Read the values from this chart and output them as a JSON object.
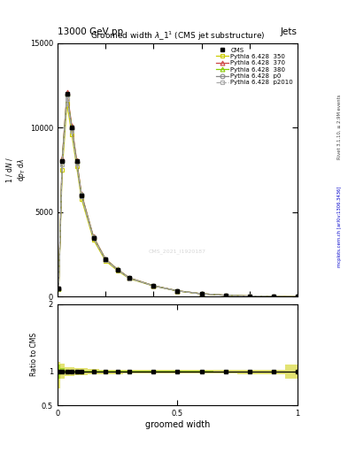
{
  "title": "13000 GeV pp",
  "title_right": "Jets",
  "plot_title": "Groomed width $\\lambda\\_1^1$ (CMS jet substructure)",
  "watermark": "CMS_2021_I1920187",
  "xlabel": "groomed width",
  "right_label_top": "Rivet 3.1.10, ≥ 2.9M events",
  "right_label_bottom": "mcplots.cern.ch [arXiv:1306.3436]",
  "x_data": [
    0.005,
    0.02,
    0.04,
    0.06,
    0.08,
    0.1,
    0.15,
    0.2,
    0.25,
    0.3,
    0.4,
    0.5,
    0.6,
    0.7,
    0.8,
    0.9,
    1.0
  ],
  "cms_y": [
    500,
    8000,
    12000,
    10000,
    8000,
    6000,
    3500,
    2200,
    1600,
    1100,
    650,
    350,
    180,
    90,
    45,
    15,
    5
  ],
  "p350_y": [
    420,
    7500,
    11400,
    9600,
    7700,
    5800,
    3380,
    2130,
    1550,
    1070,
    640,
    345,
    177,
    88,
    43,
    14,
    4
  ],
  "p370_y": [
    540,
    8200,
    12100,
    10100,
    8100,
    6100,
    3560,
    2240,
    1630,
    1120,
    660,
    355,
    182,
    92,
    46,
    16,
    5
  ],
  "p380_y": [
    510,
    8100,
    12000,
    10000,
    8000,
    6050,
    3530,
    2220,
    1620,
    1110,
    655,
    352,
    181,
    91,
    46,
    15,
    5
  ],
  "p0_y": [
    500,
    8050,
    11950,
    9950,
    7980,
    6020,
    3510,
    2210,
    1610,
    1105,
    652,
    350,
    180,
    90,
    45,
    15,
    5
  ],
  "p2010_y": [
    480,
    7800,
    11700,
    9800,
    7850,
    5950,
    3470,
    2190,
    1590,
    1090,
    645,
    347,
    178,
    89,
    44,
    14,
    4
  ],
  "ratio_350_lo": [
    0.75,
    0.9,
    0.93,
    0.94,
    0.95,
    0.95,
    0.96,
    0.96,
    0.96,
    0.97,
    0.97,
    0.97,
    0.97,
    0.97,
    0.96,
    0.96,
    0.9
  ],
  "ratio_350_hi": [
    1.15,
    1.12,
    1.07,
    1.06,
    1.05,
    1.05,
    1.04,
    1.03,
    1.03,
    1.03,
    1.02,
    1.02,
    1.02,
    1.02,
    1.03,
    1.03,
    1.1
  ],
  "ratio_380_lo": [
    0.9,
    0.97,
    0.985,
    0.99,
    0.99,
    0.995,
    0.995,
    0.995,
    0.995,
    0.995,
    0.995,
    0.996,
    0.997,
    0.997,
    0.998,
    0.999,
    0.999
  ],
  "ratio_380_hi": [
    1.1,
    1.05,
    1.02,
    1.015,
    1.01,
    1.01,
    1.01,
    1.01,
    1.01,
    1.01,
    1.01,
    1.01,
    1.008,
    1.006,
    1.005,
    1.003,
    1.002
  ],
  "color_350": "#cccc00",
  "color_370": "#cc4444",
  "color_380": "#88cc00",
  "color_p0": "#888888",
  "color_p2010": "#aaaaaa",
  "ylim_main": [
    0,
    15000
  ],
  "yticks_main": [
    0,
    5000,
    10000,
    15000
  ],
  "ylim_ratio": [
    0.5,
    2.0
  ],
  "yticks_ratio": [
    0.5,
    1.0,
    2.0
  ],
  "xlim": [
    0.0,
    1.0
  ]
}
